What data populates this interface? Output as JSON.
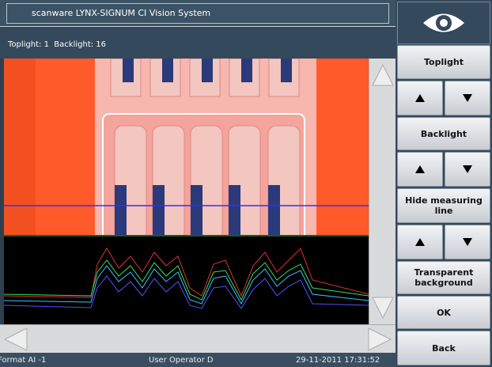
{
  "window": {
    "title": "scanware LYNX-SIGNUM CI Vision System",
    "status_line": "Toplight: 1  Backlight: 16"
  },
  "buttons": {
    "toplight": "Toplight",
    "backlight": "Backlight",
    "hide_measuring_line": "Hide measuring line",
    "transparent_background": "Transparent background",
    "ok": "OK",
    "back": "Back"
  },
  "status_bar": {
    "format": "Format AI -1",
    "user": "User Operator D",
    "datetime": "29-11-2011 17:31:52"
  }
}
